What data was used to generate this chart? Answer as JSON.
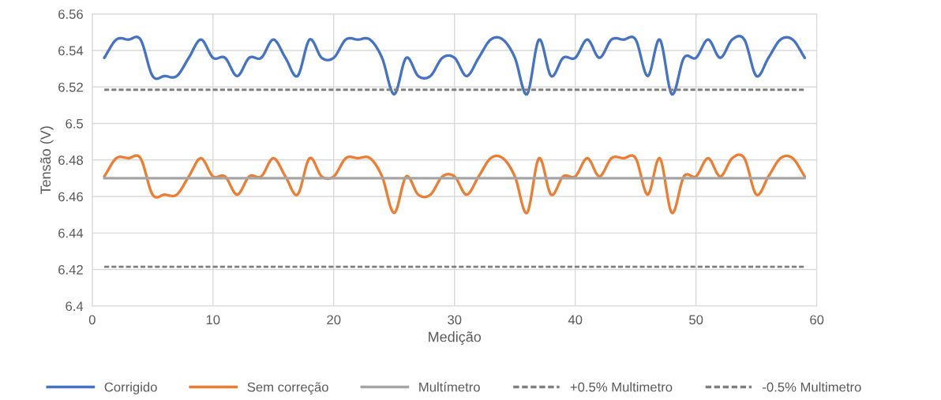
{
  "chart_data": {
    "type": "line",
    "xlabel": "Medição",
    "ylabel": "Tensão (V)",
    "x": [
      1,
      2,
      3,
      4,
      5,
      6,
      7,
      8,
      9,
      10,
      11,
      12,
      13,
      14,
      15,
      16,
      17,
      18,
      19,
      20,
      21,
      22,
      23,
      24,
      25,
      26,
      27,
      28,
      29,
      30,
      31,
      32,
      33,
      34,
      35,
      36,
      37,
      38,
      39,
      40,
      41,
      42,
      43,
      44,
      45,
      46,
      47,
      48,
      49,
      50,
      51,
      52,
      53,
      54,
      55,
      56,
      57,
      58,
      59
    ],
    "series": [
      {
        "name": "Corrigido",
        "color": "#4472c4",
        "line_style": "solid",
        "values": [
          6.536,
          6.546,
          6.546,
          6.546,
          6.526,
          6.526,
          6.526,
          6.536,
          6.546,
          6.536,
          6.536,
          6.526,
          6.536,
          6.536,
          6.546,
          6.536,
          6.526,
          6.546,
          6.536,
          6.536,
          6.546,
          6.546,
          6.546,
          6.536,
          6.516,
          6.536,
          6.526,
          6.526,
          6.536,
          6.536,
          6.526,
          6.536,
          6.546,
          6.546,
          6.536,
          6.516,
          6.546,
          6.526,
          6.536,
          6.536,
          6.546,
          6.536,
          6.546,
          6.546,
          6.546,
          6.526,
          6.546,
          6.516,
          6.536,
          6.536,
          6.546,
          6.536,
          6.546,
          6.546,
          6.526,
          6.536,
          6.546,
          6.546,
          6.536
        ]
      },
      {
        "name": "Sem correção",
        "color": "#ed7d31",
        "line_style": "solid",
        "values": [
          6.471,
          6.481,
          6.481,
          6.481,
          6.461,
          6.461,
          6.461,
          6.471,
          6.481,
          6.471,
          6.471,
          6.461,
          6.471,
          6.471,
          6.481,
          6.471,
          6.461,
          6.481,
          6.471,
          6.471,
          6.481,
          6.481,
          6.481,
          6.471,
          6.451,
          6.471,
          6.461,
          6.461,
          6.471,
          6.471,
          6.461,
          6.471,
          6.481,
          6.481,
          6.471,
          6.451,
          6.481,
          6.461,
          6.471,
          6.471,
          6.481,
          6.471,
          6.481,
          6.481,
          6.481,
          6.461,
          6.481,
          6.451,
          6.471,
          6.471,
          6.481,
          6.471,
          6.481,
          6.481,
          6.461,
          6.471,
          6.481,
          6.481,
          6.471
        ]
      },
      {
        "name": "Multímetro",
        "color": "#a5a5a5",
        "line_style": "solid",
        "values": [
          6.47,
          6.47,
          6.47,
          6.47,
          6.47,
          6.47,
          6.47,
          6.47,
          6.47,
          6.47,
          6.47,
          6.47,
          6.47,
          6.47,
          6.47,
          6.47,
          6.47,
          6.47,
          6.47,
          6.47,
          6.47,
          6.47,
          6.47,
          6.47,
          6.47,
          6.47,
          6.47,
          6.47,
          6.47,
          6.47,
          6.47,
          6.47,
          6.47,
          6.47,
          6.47,
          6.47,
          6.47,
          6.47,
          6.47,
          6.47,
          6.47,
          6.47,
          6.47,
          6.47,
          6.47,
          6.47,
          6.47,
          6.47,
          6.47,
          6.47,
          6.47,
          6.47,
          6.47,
          6.47,
          6.47,
          6.47,
          6.47,
          6.47,
          6.47
        ]
      },
      {
        "name": "+0.5% Multimetro",
        "color": "#7f7f7f",
        "line_style": "dashed",
        "values": [
          6.5185,
          6.5185,
          6.5185,
          6.5185,
          6.5185,
          6.5185,
          6.5185,
          6.5185,
          6.5185,
          6.5185,
          6.5185,
          6.5185,
          6.5185,
          6.5185,
          6.5185,
          6.5185,
          6.5185,
          6.5185,
          6.5185,
          6.5185,
          6.5185,
          6.5185,
          6.5185,
          6.5185,
          6.5185,
          6.5185,
          6.5185,
          6.5185,
          6.5185,
          6.5185,
          6.5185,
          6.5185,
          6.5185,
          6.5185,
          6.5185,
          6.5185,
          6.5185,
          6.5185,
          6.5185,
          6.5185,
          6.5185,
          6.5185,
          6.5185,
          6.5185,
          6.5185,
          6.5185,
          6.5185,
          6.5185,
          6.5185,
          6.5185,
          6.5185,
          6.5185,
          6.5185,
          6.5185,
          6.5185,
          6.5185,
          6.5185,
          6.5185,
          6.5185
        ]
      },
      {
        "name": "-0.5% Multimetro",
        "color": "#7f7f7f",
        "line_style": "dashed",
        "values": [
          6.4215,
          6.4215,
          6.4215,
          6.4215,
          6.4215,
          6.4215,
          6.4215,
          6.4215,
          6.4215,
          6.4215,
          6.4215,
          6.4215,
          6.4215,
          6.4215,
          6.4215,
          6.4215,
          6.4215,
          6.4215,
          6.4215,
          6.4215,
          6.4215,
          6.4215,
          6.4215,
          6.4215,
          6.4215,
          6.4215,
          6.4215,
          6.4215,
          6.4215,
          6.4215,
          6.4215,
          6.4215,
          6.4215,
          6.4215,
          6.4215,
          6.4215,
          6.4215,
          6.4215,
          6.4215,
          6.4215,
          6.4215,
          6.4215,
          6.4215,
          6.4215,
          6.4215,
          6.4215,
          6.4215,
          6.4215,
          6.4215,
          6.4215,
          6.4215,
          6.4215,
          6.4215,
          6.4215,
          6.4215,
          6.4215,
          6.4215,
          6.4215,
          6.4215
        ]
      }
    ],
    "xlim": [
      0,
      60
    ],
    "xticks": [
      0,
      10,
      20,
      30,
      40,
      50,
      60
    ],
    "ylim": [
      6.4,
      6.56
    ],
    "yticks": [
      6.4,
      6.42,
      6.44,
      6.46,
      6.48,
      6.5,
      6.52,
      6.54,
      6.56
    ],
    "grid": true,
    "legend": "bottom",
    "marker": "none"
  }
}
